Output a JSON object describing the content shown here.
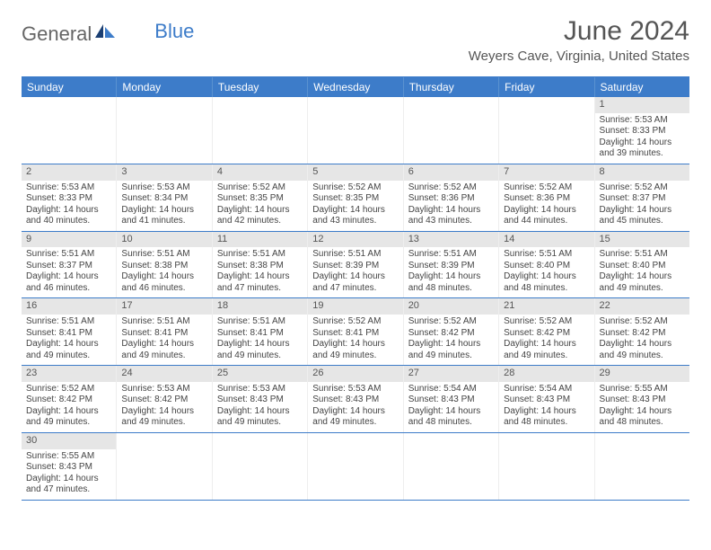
{
  "logo": {
    "text1": "General",
    "text2": "Blue"
  },
  "title": "June 2024",
  "location": "Weyers Cave, Virginia, United States",
  "colors": {
    "header_bg": "#3d7cc9",
    "header_text": "#ffffff",
    "daynum_bg": "#e6e6e6",
    "border": "#3d7cc9",
    "text": "#444444"
  },
  "day_headers": [
    "Sunday",
    "Monday",
    "Tuesday",
    "Wednesday",
    "Thursday",
    "Friday",
    "Saturday"
  ],
  "weeks": [
    [
      null,
      null,
      null,
      null,
      null,
      null,
      {
        "n": "1",
        "sunrise": "5:53 AM",
        "sunset": "8:33 PM",
        "daylight": "14 hours and 39 minutes."
      }
    ],
    [
      {
        "n": "2",
        "sunrise": "5:53 AM",
        "sunset": "8:33 PM",
        "daylight": "14 hours and 40 minutes."
      },
      {
        "n": "3",
        "sunrise": "5:53 AM",
        "sunset": "8:34 PM",
        "daylight": "14 hours and 41 minutes."
      },
      {
        "n": "4",
        "sunrise": "5:52 AM",
        "sunset": "8:35 PM",
        "daylight": "14 hours and 42 minutes."
      },
      {
        "n": "5",
        "sunrise": "5:52 AM",
        "sunset": "8:35 PM",
        "daylight": "14 hours and 43 minutes."
      },
      {
        "n": "6",
        "sunrise": "5:52 AM",
        "sunset": "8:36 PM",
        "daylight": "14 hours and 43 minutes."
      },
      {
        "n": "7",
        "sunrise": "5:52 AM",
        "sunset": "8:36 PM",
        "daylight": "14 hours and 44 minutes."
      },
      {
        "n": "8",
        "sunrise": "5:52 AM",
        "sunset": "8:37 PM",
        "daylight": "14 hours and 45 minutes."
      }
    ],
    [
      {
        "n": "9",
        "sunrise": "5:51 AM",
        "sunset": "8:37 PM",
        "daylight": "14 hours and 46 minutes."
      },
      {
        "n": "10",
        "sunrise": "5:51 AM",
        "sunset": "8:38 PM",
        "daylight": "14 hours and 46 minutes."
      },
      {
        "n": "11",
        "sunrise": "5:51 AM",
        "sunset": "8:38 PM",
        "daylight": "14 hours and 47 minutes."
      },
      {
        "n": "12",
        "sunrise": "5:51 AM",
        "sunset": "8:39 PM",
        "daylight": "14 hours and 47 minutes."
      },
      {
        "n": "13",
        "sunrise": "5:51 AM",
        "sunset": "8:39 PM",
        "daylight": "14 hours and 48 minutes."
      },
      {
        "n": "14",
        "sunrise": "5:51 AM",
        "sunset": "8:40 PM",
        "daylight": "14 hours and 48 minutes."
      },
      {
        "n": "15",
        "sunrise": "5:51 AM",
        "sunset": "8:40 PM",
        "daylight": "14 hours and 49 minutes."
      }
    ],
    [
      {
        "n": "16",
        "sunrise": "5:51 AM",
        "sunset": "8:41 PM",
        "daylight": "14 hours and 49 minutes."
      },
      {
        "n": "17",
        "sunrise": "5:51 AM",
        "sunset": "8:41 PM",
        "daylight": "14 hours and 49 minutes."
      },
      {
        "n": "18",
        "sunrise": "5:51 AM",
        "sunset": "8:41 PM",
        "daylight": "14 hours and 49 minutes."
      },
      {
        "n": "19",
        "sunrise": "5:52 AM",
        "sunset": "8:41 PM",
        "daylight": "14 hours and 49 minutes."
      },
      {
        "n": "20",
        "sunrise": "5:52 AM",
        "sunset": "8:42 PM",
        "daylight": "14 hours and 49 minutes."
      },
      {
        "n": "21",
        "sunrise": "5:52 AM",
        "sunset": "8:42 PM",
        "daylight": "14 hours and 49 minutes."
      },
      {
        "n": "22",
        "sunrise": "5:52 AM",
        "sunset": "8:42 PM",
        "daylight": "14 hours and 49 minutes."
      }
    ],
    [
      {
        "n": "23",
        "sunrise": "5:52 AM",
        "sunset": "8:42 PM",
        "daylight": "14 hours and 49 minutes."
      },
      {
        "n": "24",
        "sunrise": "5:53 AM",
        "sunset": "8:42 PM",
        "daylight": "14 hours and 49 minutes."
      },
      {
        "n": "25",
        "sunrise": "5:53 AM",
        "sunset": "8:43 PM",
        "daylight": "14 hours and 49 minutes."
      },
      {
        "n": "26",
        "sunrise": "5:53 AM",
        "sunset": "8:43 PM",
        "daylight": "14 hours and 49 minutes."
      },
      {
        "n": "27",
        "sunrise": "5:54 AM",
        "sunset": "8:43 PM",
        "daylight": "14 hours and 48 minutes."
      },
      {
        "n": "28",
        "sunrise": "5:54 AM",
        "sunset": "8:43 PM",
        "daylight": "14 hours and 48 minutes."
      },
      {
        "n": "29",
        "sunrise": "5:55 AM",
        "sunset": "8:43 PM",
        "daylight": "14 hours and 48 minutes."
      }
    ],
    [
      {
        "n": "30",
        "sunrise": "5:55 AM",
        "sunset": "8:43 PM",
        "daylight": "14 hours and 47 minutes."
      },
      null,
      null,
      null,
      null,
      null,
      null
    ]
  ],
  "labels": {
    "sunrise": "Sunrise: ",
    "sunset": "Sunset: ",
    "daylight": "Daylight: "
  }
}
